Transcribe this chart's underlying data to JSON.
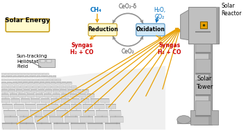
{
  "bg_color": "#ffffff",
  "fig_width": 3.54,
  "fig_height": 1.89,
  "dpi": 100,
  "solar_energy_label": "Solar Energy",
  "solar_energy_box_color": "#fffacd",
  "solar_energy_box_edge": "#c8a020",
  "sun_tracking_label": "Sun-tracking\nHeliostat\nField",
  "solar_reactor_label": "Solar\nReactor",
  "solar_tower_label": "Solar\nTower",
  "ch4_label": "CH₄",
  "ch4_color": "#0070c0",
  "ceo2_delta_label": "CeO₂-δ",
  "ceo2_label": "CeO₂",
  "h2o_co2_label": "H₂O,\nCO₂",
  "h2o_co2_color": "#0070c0",
  "reduction_label": "Reduction",
  "reduction_box_color": "#fffacd",
  "reduction_box_edge": "#c8a020",
  "oxidation_label": "Oxidation",
  "oxidation_box_color": "#d0e8f8",
  "oxidation_box_edge": "#5090c0",
  "syngas_label": "Syngas\nH₂ + CO",
  "syngas_color": "#cc0000",
  "cycle_arrow_color": "#909090",
  "energy_arrow_color": "#e8a000",
  "tower_color": "#c8c8c8",
  "tower_dark": "#909090",
  "reactor_color": "#c8c8c8",
  "reactor_window_color": "#e8a000",
  "heliostat_light": "#d8d8d8",
  "heliostat_mid": "#a8a8a8",
  "heliostat_dark": "#787878"
}
